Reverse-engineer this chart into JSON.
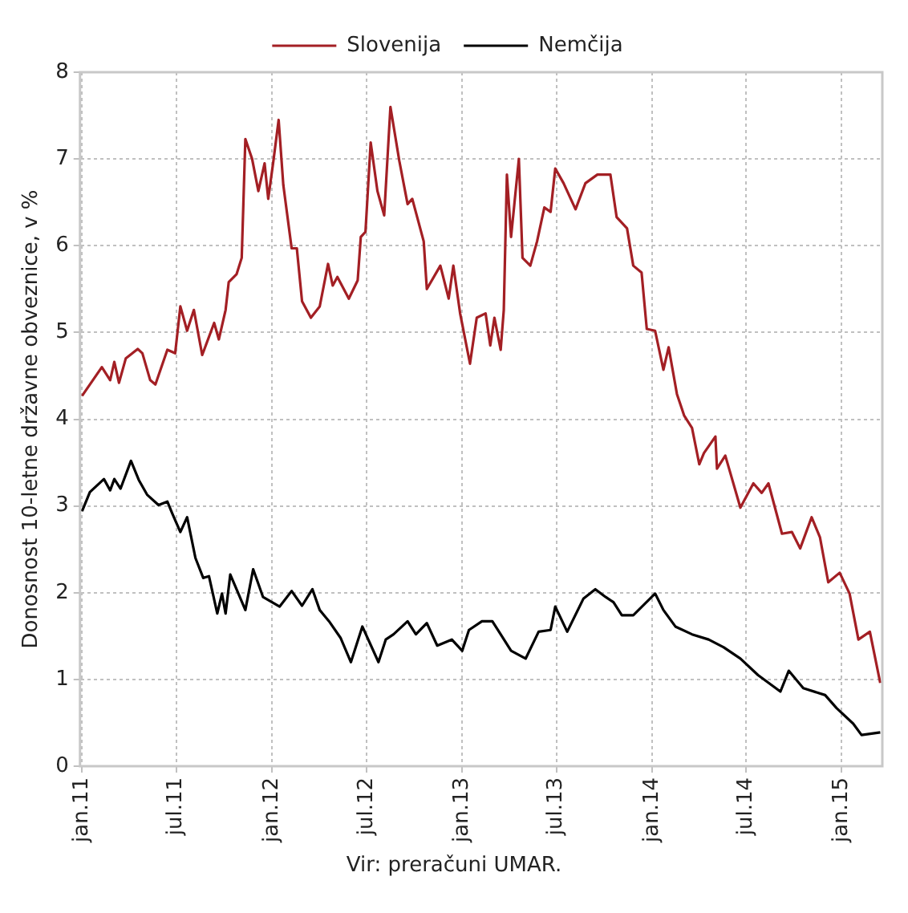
{
  "chart_data": {
    "type": "line",
    "ylabel": "Donosnost 10-letne državne obveznice, v %",
    "annotations": [
      "Vir: preračuni UMAR."
    ],
    "xlim": [
      "2010-12-28",
      "2015-03-20"
    ],
    "xticks": [
      {
        "value": "2011-01-01",
        "label": "jan.11"
      },
      {
        "value": "2011-07-01",
        "label": "jul.11"
      },
      {
        "value": "2012-01-01",
        "label": "jan.12"
      },
      {
        "value": "2012-07-01",
        "label": "jul.12"
      },
      {
        "value": "2013-01-01",
        "label": "jan.13"
      },
      {
        "value": "2013-07-01",
        "label": "jul.13"
      },
      {
        "value": "2014-01-01",
        "label": "jan.14"
      },
      {
        "value": "2014-07-01",
        "label": "jul.14"
      },
      {
        "value": "2015-01-01",
        "label": "jan.15"
      }
    ],
    "ylim": [
      0,
      8
    ],
    "yticks": [
      0,
      1,
      2,
      3,
      4,
      5,
      6,
      7,
      8
    ],
    "grid": true,
    "legend": "top",
    "marker": "none",
    "line_style": "solid",
    "series": [
      {
        "name": "Slovenija",
        "color": "#a31f24",
        "x": [
          "2011-01-01",
          "2011-02-08",
          "2011-02-24",
          "2011-03-04",
          "2011-03-13",
          "2011-03-26",
          "2011-04-18",
          "2011-04-27",
          "2011-05-12",
          "2011-05-22",
          "2011-06-14",
          "2011-06-29",
          "2011-07-09",
          "2011-07-22",
          "2011-08-04",
          "2011-08-20",
          "2011-09-12",
          "2011-09-21",
          "2011-10-04",
          "2011-10-10",
          "2011-10-25",
          "2011-11-04",
          "2011-11-11",
          "2011-11-24",
          "2011-12-06",
          "2011-12-18",
          "2011-12-25",
          "2012-01-04",
          "2012-01-14",
          "2012-01-23",
          "2012-02-08",
          "2012-02-18",
          "2012-02-28",
          "2012-03-16",
          "2012-04-02",
          "2012-04-18",
          "2012-04-27",
          "2012-05-06",
          "2012-05-28",
          "2012-06-14",
          "2012-06-20",
          "2012-06-29",
          "2012-07-09",
          "2012-07-22",
          "2012-08-04",
          "2012-08-16",
          "2012-09-02",
          "2012-09-18",
          "2012-09-27",
          "2012-10-19",
          "2012-10-25",
          "2012-11-20",
          "2012-12-06",
          "2012-12-15",
          "2012-12-28",
          "2013-01-16",
          "2013-01-29",
          "2013-02-15",
          "2013-02-24",
          "2013-03-04",
          "2013-03-16",
          "2013-03-22",
          "2013-03-28",
          "2013-04-05",
          "2013-04-20",
          "2013-04-27",
          "2013-05-12",
          "2013-05-25",
          "2013-06-08",
          "2013-06-20",
          "2013-06-29",
          "2013-07-15",
          "2013-08-07",
          "2013-08-26",
          "2013-09-18",
          "2013-10-13",
          "2013-10-25",
          "2013-11-14",
          "2013-11-26",
          "2013-12-12",
          "2013-12-22",
          "2014-01-07",
          "2014-01-23",
          "2014-02-02",
          "2014-02-18",
          "2014-03-04",
          "2014-03-19",
          "2014-04-02",
          "2014-04-11",
          "2014-05-03",
          "2014-05-06",
          "2014-05-22",
          "2014-06-20",
          "2014-07-15",
          "2014-07-31",
          "2014-08-13",
          "2014-09-08",
          "2014-09-27",
          "2014-10-13",
          "2014-11-04",
          "2014-11-20",
          "2014-12-06",
          "2014-12-28",
          "2015-01-16",
          "2015-02-02",
          "2015-02-24",
          "2015-03-16"
        ],
        "values": [
          4.27,
          4.6,
          4.45,
          4.66,
          4.42,
          4.7,
          4.81,
          4.76,
          4.45,
          4.4,
          4.8,
          4.76,
          5.3,
          5.02,
          5.26,
          4.74,
          5.11,
          4.92,
          5.26,
          5.58,
          5.67,
          5.86,
          7.23,
          7.0,
          6.63,
          6.95,
          6.54,
          6.98,
          7.45,
          6.7,
          5.97,
          5.97,
          5.36,
          5.17,
          5.3,
          5.79,
          5.54,
          5.64,
          5.39,
          5.6,
          6.1,
          6.16,
          7.19,
          6.63,
          6.35,
          7.6,
          6.98,
          6.48,
          6.54,
          6.05,
          5.5,
          5.77,
          5.39,
          5.77,
          5.22,
          4.64,
          5.17,
          5.22,
          4.85,
          5.17,
          4.8,
          5.26,
          6.82,
          6.1,
          7.0,
          5.86,
          5.77,
          6.05,
          6.44,
          6.39,
          6.89,
          6.72,
          6.42,
          6.72,
          6.82,
          6.82,
          6.33,
          6.2,
          5.77,
          5.69,
          5.04,
          5.02,
          4.57,
          4.83,
          4.29,
          4.04,
          3.9,
          3.48,
          3.61,
          3.8,
          3.43,
          3.58,
          2.98,
          3.26,
          3.15,
          3.26,
          2.68,
          2.7,
          2.51,
          2.87,
          2.64,
          2.12,
          2.23,
          1.99,
          1.46,
          1.55,
          0.96
        ]
      },
      {
        "name": "Nemčija",
        "color": "#000000",
        "x": [
          "2011-01-01",
          "2011-01-16",
          "2011-02-12",
          "2011-02-24",
          "2011-03-04",
          "2011-03-16",
          "2011-04-05",
          "2011-04-20",
          "2011-05-06",
          "2011-05-28",
          "2011-06-14",
          "2011-06-23",
          "2011-07-09",
          "2011-07-22",
          "2011-08-07",
          "2011-08-22",
          "2011-09-02",
          "2011-09-18",
          "2011-09-27",
          "2011-10-04",
          "2011-10-13",
          "2011-10-25",
          "2011-11-11",
          "2011-11-26",
          "2011-12-15",
          "2012-01-16",
          "2012-02-08",
          "2012-02-28",
          "2012-03-19",
          "2012-04-02",
          "2012-04-20",
          "2012-05-12",
          "2012-06-01",
          "2012-06-23",
          "2012-07-24",
          "2012-08-07",
          "2012-08-22",
          "2012-09-18",
          "2012-10-04",
          "2012-10-25",
          "2012-11-14",
          "2012-12-12",
          "2013-01-01",
          "2013-01-14",
          "2013-02-08",
          "2013-02-28",
          "2013-03-16",
          "2013-04-05",
          "2013-05-03",
          "2013-05-28",
          "2013-06-20",
          "2013-06-29",
          "2013-07-22",
          "2013-08-22",
          "2013-09-14",
          "2013-10-04",
          "2013-10-19",
          "2013-11-04",
          "2013-11-26",
          "2014-01-07",
          "2014-01-23",
          "2014-02-15",
          "2014-03-19",
          "2014-04-20",
          "2014-05-19",
          "2014-06-20",
          "2014-07-24",
          "2014-09-05",
          "2014-09-21",
          "2014-10-19",
          "2014-11-30",
          "2014-12-22",
          "2015-01-23",
          "2015-02-08",
          "2015-03-16"
        ],
        "values": [
          2.94,
          3.16,
          3.31,
          3.18,
          3.31,
          3.2,
          3.52,
          3.3,
          3.13,
          3.01,
          3.05,
          2.92,
          2.7,
          2.87,
          2.4,
          2.17,
          2.19,
          1.76,
          1.99,
          1.76,
          2.21,
          2.04,
          1.8,
          2.27,
          1.95,
          1.84,
          2.02,
          1.85,
          2.04,
          1.8,
          1.67,
          1.48,
          1.2,
          1.61,
          1.2,
          1.46,
          1.52,
          1.67,
          1.52,
          1.65,
          1.39,
          1.46,
          1.33,
          1.57,
          1.67,
          1.67,
          1.52,
          1.33,
          1.24,
          1.55,
          1.57,
          1.84,
          1.55,
          1.93,
          2.04,
          1.95,
          1.89,
          1.74,
          1.74,
          1.99,
          1.8,
          1.61,
          1.52,
          1.46,
          1.37,
          1.24,
          1.05,
          0.86,
          1.1,
          0.9,
          0.82,
          0.67,
          0.49,
          0.36,
          0.39
        ]
      }
    ]
  }
}
